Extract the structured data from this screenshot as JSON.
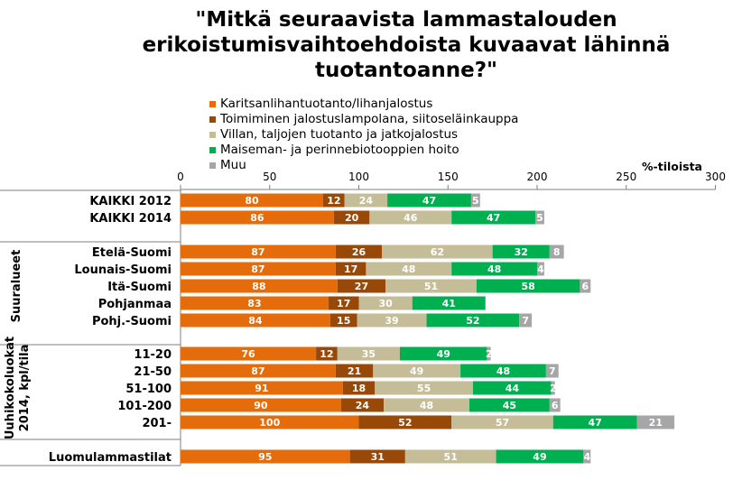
{
  "title": "\"Mitkä seuraavista lammastalouden erikoistumisvaihtoehdoista kuvaavat lähinnä tuotantoanne?\"",
  "chart_data": {
    "type": "bar",
    "orientation": "horizontal",
    "stacked": true,
    "unit_label": "%-tiloista",
    "xlim": [
      0,
      300
    ],
    "x_ticks": [
      0,
      50,
      100,
      150,
      200,
      250,
      300
    ],
    "legend_position": "top",
    "categories": [
      "KAIKKI 2012",
      "KAIKKI 2014",
      "Etelä-Suomi",
      "Lounais-Suomi",
      "Itä-Suomi",
      "Pohjanmaa",
      "Pohj.-Suomi",
      "11-20",
      "21-50",
      "51-100",
      "101-200",
      "201-",
      "Luomulammastilat"
    ],
    "groups": [
      {
        "label": "",
        "categories": [
          "KAIKKI 2012",
          "KAIKKI 2014"
        ]
      },
      {
        "label": "Suuralueet",
        "categories": [
          "Etelä-Suomi",
          "Lounais-Suomi",
          "Itä-Suomi",
          "Pohjanmaa",
          "Pohj.-Suomi"
        ]
      },
      {
        "label": "Uuhikokoluokat 2014, kpl/tila",
        "categories": [
          "11-20",
          "21-50",
          "51-100",
          "101-200",
          "201-"
        ]
      },
      {
        "label": "",
        "categories": [
          "Luomulammastilat"
        ]
      }
    ],
    "series": [
      {
        "name": "Karitsanlihantuotanto/lihanjalostus",
        "color": "#e46c0a",
        "values": [
          80,
          86,
          87,
          87,
          88,
          83,
          84,
          76,
          87,
          91,
          90,
          100,
          95
        ]
      },
      {
        "name": "Toimiminen jalostuslampolana, siitoseläinkauppa",
        "color": "#984807",
        "values": [
          12,
          20,
          26,
          17,
          27,
          17,
          15,
          12,
          21,
          18,
          24,
          52,
          31
        ]
      },
      {
        "name": "Villan, taljojen tuotanto ja jatkojalostus",
        "color": "#c4bd97",
        "values": [
          24,
          46,
          62,
          48,
          51,
          30,
          39,
          35,
          49,
          55,
          48,
          57,
          51
        ]
      },
      {
        "name": "Maiseman- ja perinnebiotooppien hoito",
        "color": "#00b050",
        "values": [
          47,
          47,
          32,
          48,
          58,
          41,
          52,
          49,
          48,
          44,
          45,
          47,
          49
        ]
      },
      {
        "name": "Muu",
        "color": "#a6a6a6",
        "values": [
          5,
          5,
          8,
          4,
          6,
          0,
          7,
          2,
          7,
          2,
          6,
          21,
          4
        ]
      }
    ],
    "label_colors": [
      "#ffffff",
      "#ffffff",
      "#ffffff",
      "#ffffff",
      "#ffffff"
    ]
  }
}
